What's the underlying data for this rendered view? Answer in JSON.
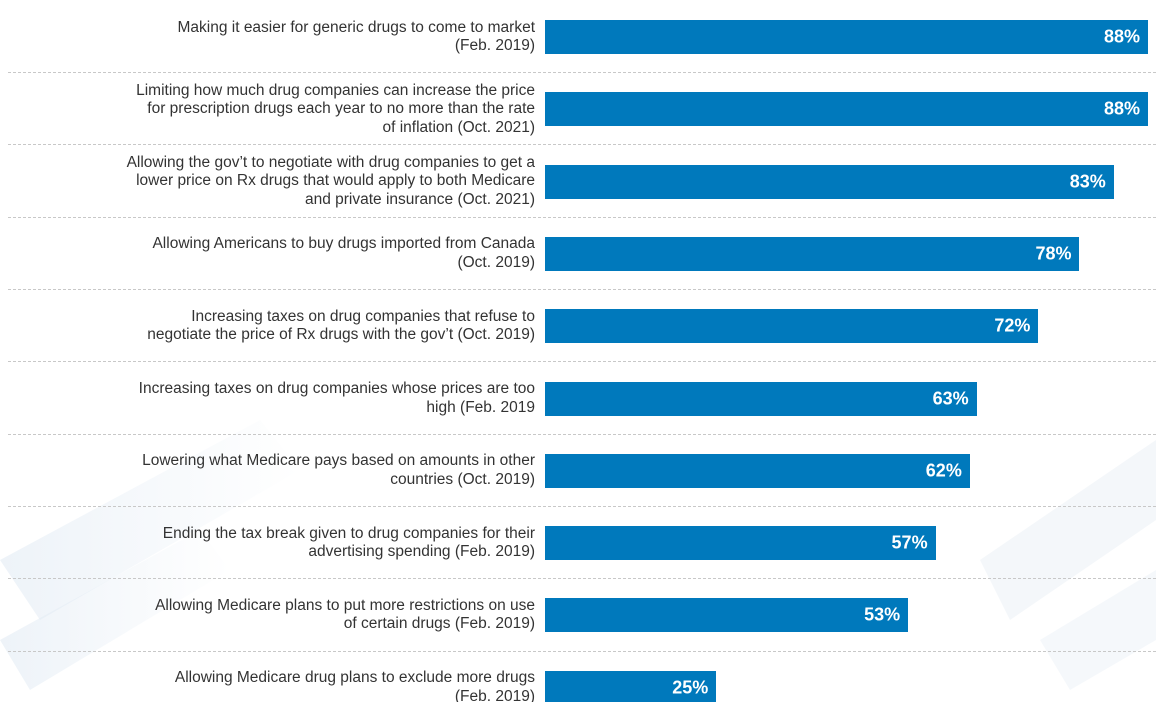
{
  "chart_data": {
    "type": "bar",
    "orientation": "horizontal",
    "categories": [
      "Making it easier for generic drugs to come to market (Feb. 2019)",
      "Limiting how much drug companies can increase the price for prescription drugs each year to no more than the rate of inflation (Oct. 2021)",
      "Allowing the gov’t to negotiate with drug companies to get a lower price on Rx drugs that would apply to both Medicare and private insurance (Oct. 2021)",
      "Allowing Americans to buy drugs imported from Canada (Oct. 2019)",
      "Increasing taxes on drug companies that refuse to negotiate the price of Rx drugs with the gov’t (Oct. 2019)",
      "Increasing taxes on drug companies whose prices are too high (Feb. 2019",
      "Lowering what Medicare pays based on amounts in other countries (Oct. 2019)",
      "Ending the tax break given to drug companies for their advertising spending (Feb. 2019)",
      "Allowing Medicare plans to put more restrictions on use of certain drugs (Feb. 2019)",
      "Allowing Medicare drug plans to exclude more drugs (Feb. 2019)"
    ],
    "values": [
      88,
      88,
      83,
      78,
      72,
      63,
      62,
      57,
      53,
      25
    ],
    "value_labels": [
      "88%",
      "88%",
      "83%",
      "78%",
      "72%",
      "63%",
      "62%",
      "57%",
      "53%",
      "25%"
    ],
    "xlim": [
      0,
      88
    ],
    "grid": false,
    "bar_color": "#0079bc",
    "label_color": "#333333",
    "value_label_color": "#ffffff",
    "divider_color": "#c8c8c8"
  }
}
